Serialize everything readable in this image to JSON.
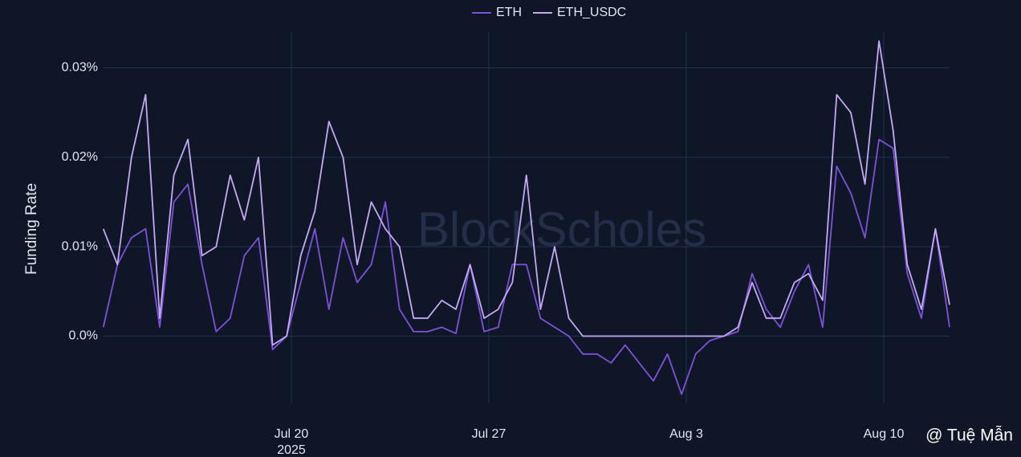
{
  "chart_data": {
    "type": "line",
    "ylabel": "Funding Rate",
    "watermark": "BlockScholes",
    "credit": "@ Tuệ Mẫn",
    "x": [
      "2025-07-13T08:00",
      "2025-07-13T20:00",
      "2025-07-14T08:00",
      "2025-07-14T20:00",
      "2025-07-15T08:00",
      "2025-07-15T20:00",
      "2025-07-16T08:00",
      "2025-07-16T20:00",
      "2025-07-17T08:00",
      "2025-07-17T20:00",
      "2025-07-18T08:00",
      "2025-07-18T20:00",
      "2025-07-19T08:00",
      "2025-07-19T20:00",
      "2025-07-20T08:00",
      "2025-07-20T20:00",
      "2025-07-21T08:00",
      "2025-07-21T20:00",
      "2025-07-22T08:00",
      "2025-07-22T20:00",
      "2025-07-23T08:00",
      "2025-07-23T20:00",
      "2025-07-24T08:00",
      "2025-07-24T20:00",
      "2025-07-25T08:00",
      "2025-07-25T20:00",
      "2025-07-26T08:00",
      "2025-07-26T20:00",
      "2025-07-27T08:00",
      "2025-07-27T20:00",
      "2025-07-28T08:00",
      "2025-07-28T20:00",
      "2025-07-29T08:00",
      "2025-07-29T20:00",
      "2025-07-30T08:00",
      "2025-07-30T20:00",
      "2025-07-31T08:00",
      "2025-07-31T20:00",
      "2025-08-01T08:00",
      "2025-08-01T20:00",
      "2025-08-02T08:00",
      "2025-08-02T20:00",
      "2025-08-03T08:00",
      "2025-08-03T20:00",
      "2025-08-04T08:00",
      "2025-08-04T20:00",
      "2025-08-05T08:00",
      "2025-08-05T20:00",
      "2025-08-06T08:00",
      "2025-08-06T20:00",
      "2025-08-07T08:00",
      "2025-08-07T20:00",
      "2025-08-08T08:00",
      "2025-08-08T20:00",
      "2025-08-09T08:00",
      "2025-08-09T20:00",
      "2025-08-10T08:00",
      "2025-08-10T20:00",
      "2025-08-11T08:00",
      "2025-08-11T20:00",
      "2025-08-12T08:00"
    ],
    "series": [
      {
        "name": "ETH",
        "color": "#7d52d9",
        "values": [
          0.001,
          0.008,
          0.011,
          0.012,
          0.001,
          0.015,
          0.017,
          0.008,
          0.0005,
          0.002,
          0.009,
          0.011,
          -0.0015,
          0.0,
          0.006,
          0.012,
          0.003,
          0.011,
          0.006,
          0.008,
          0.015,
          0.003,
          0.0005,
          0.0005,
          0.001,
          0.0003,
          0.008,
          0.0005,
          0.001,
          0.008,
          0.008,
          0.002,
          0.001,
          0.0,
          -0.002,
          -0.002,
          -0.003,
          -0.001,
          -0.003,
          -0.005,
          -0.002,
          -0.0065,
          -0.002,
          -0.0005,
          0.0,
          0.0005,
          0.007,
          0.003,
          0.001,
          0.005,
          0.008,
          0.001,
          0.019,
          0.016,
          0.011,
          0.022,
          0.021,
          0.007,
          0.002,
          0.012,
          0.001
        ]
      },
      {
        "name": "ETH_USDC",
        "color": "#c4aaf2",
        "values": [
          0.012,
          0.008,
          0.02,
          0.027,
          0.002,
          0.018,
          0.022,
          0.009,
          0.01,
          0.018,
          0.013,
          0.02,
          -0.001,
          0.0,
          0.009,
          0.014,
          0.024,
          0.02,
          0.008,
          0.015,
          0.012,
          0.01,
          0.002,
          0.002,
          0.004,
          0.003,
          0.008,
          0.002,
          0.003,
          0.006,
          0.018,
          0.003,
          0.01,
          0.002,
          0.0,
          0.0,
          0.0,
          0.0,
          0.0,
          0.0,
          0.0,
          0.0,
          0.0,
          0.0,
          0.0,
          0.001,
          0.006,
          0.002,
          0.002,
          0.006,
          0.007,
          0.004,
          0.027,
          0.025,
          0.017,
          0.033,
          0.023,
          0.008,
          0.003,
          0.012,
          0.0035
        ]
      }
    ],
    "xlim": [
      "2025-07-13T08:00",
      "2025-08-12T08:00"
    ],
    "xticks": [
      {
        "value": "2025-07-20T00:00",
        "label": "Jul 20"
      },
      {
        "value": "2025-07-27T00:00",
        "label": "Jul 27"
      },
      {
        "value": "2025-08-03T00:00",
        "label": "Aug 3"
      },
      {
        "value": "2025-08-10T00:00",
        "label": "Aug 10"
      }
    ],
    "x_year_label": "2025",
    "ylim": [
      -0.0075,
      0.034
    ],
    "yticks": [
      {
        "value": 0,
        "label": "0.0%"
      },
      {
        "value": 0.01,
        "label": "0.01%"
      },
      {
        "value": 0.02,
        "label": "0.02%"
      },
      {
        "value": 0.03,
        "label": "0.03%"
      }
    ],
    "grid": true,
    "legend": "top"
  }
}
